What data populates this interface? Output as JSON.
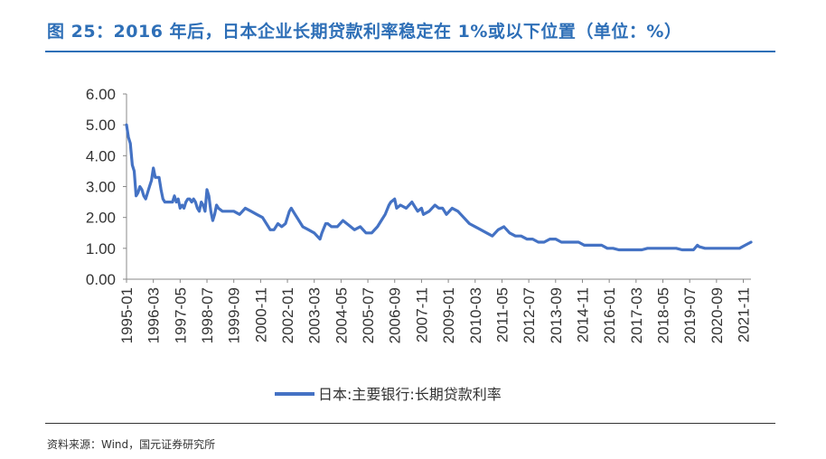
{
  "title": "图 25：2016 年后，日本企业长期贷款利率稳定在 1%或以下位置（单位：%）",
  "source": "资料来源：Wind，国元证券研究所",
  "colors": {
    "accent": "#2E6FB7",
    "series": "#4472C4"
  },
  "chart_data": {
    "type": "line",
    "title": "",
    "xlabel": "",
    "ylabel": "",
    "ylim": [
      0,
      6
    ],
    "y_ticks": [
      "0.00",
      "1.00",
      "2.00",
      "3.00",
      "4.00",
      "5.00",
      "6.00"
    ],
    "x_ticks": [
      "1995-01",
      "1996-03",
      "1997-05",
      "1998-07",
      "1999-09",
      "2000-11",
      "2002-01",
      "2003-03",
      "2004-05",
      "2005-07",
      "2006-09",
      "2007-11",
      "2009-01",
      "2010-03",
      "2011-05",
      "2012-07",
      "2013-09",
      "2014-11",
      "2016-01",
      "2017-03",
      "2018-05",
      "2019-07",
      "2020-09",
      "2021-11"
    ],
    "grid": false,
    "legend": "bottom",
    "series": [
      {
        "name": "日本:主要银行:长期贷款利率",
        "points": [
          [
            "1995-01",
            5.0
          ],
          [
            "1995-02",
            4.6
          ],
          [
            "1995-03",
            4.4
          ],
          [
            "1995-04",
            3.7
          ],
          [
            "1995-05",
            3.5
          ],
          [
            "1995-06",
            2.7
          ],
          [
            "1995-07",
            2.8
          ],
          [
            "1995-08",
            3.0
          ],
          [
            "1995-09",
            2.9
          ],
          [
            "1995-10",
            2.7
          ],
          [
            "1995-11",
            2.6
          ],
          [
            "1995-12",
            2.8
          ],
          [
            "1996-01",
            3.0
          ],
          [
            "1996-02",
            3.2
          ],
          [
            "1996-03",
            3.6
          ],
          [
            "1996-04",
            3.3
          ],
          [
            "1996-05",
            3.3
          ],
          [
            "1996-06",
            3.3
          ],
          [
            "1996-07",
            2.9
          ],
          [
            "1996-08",
            2.6
          ],
          [
            "1996-09",
            2.5
          ],
          [
            "1996-10",
            2.5
          ],
          [
            "1996-11",
            2.5
          ],
          [
            "1996-12",
            2.5
          ],
          [
            "1997-01",
            2.5
          ],
          [
            "1997-02",
            2.7
          ],
          [
            "1997-03",
            2.5
          ],
          [
            "1997-04",
            2.6
          ],
          [
            "1997-05",
            2.3
          ],
          [
            "1997-06",
            2.4
          ],
          [
            "1997-07",
            2.3
          ],
          [
            "1997-08",
            2.5
          ],
          [
            "1997-09",
            2.6
          ],
          [
            "1997-10",
            2.6
          ],
          [
            "1997-11",
            2.5
          ],
          [
            "1997-12",
            2.6
          ],
          [
            "1998-01",
            2.5
          ],
          [
            "1998-02",
            2.3
          ],
          [
            "1998-03",
            2.2
          ],
          [
            "1998-04",
            2.5
          ],
          [
            "1998-05",
            2.4
          ],
          [
            "1998-06",
            2.2
          ],
          [
            "1998-07",
            2.9
          ],
          [
            "1998-08",
            2.7
          ],
          [
            "1998-09",
            2.2
          ],
          [
            "1998-10",
            1.9
          ],
          [
            "1998-11",
            2.1
          ],
          [
            "1998-12",
            2.4
          ],
          [
            "1999-01",
            2.3
          ],
          [
            "1999-03",
            2.2
          ],
          [
            "1999-06",
            2.2
          ],
          [
            "1999-09",
            2.2
          ],
          [
            "1999-12",
            2.1
          ],
          [
            "2000-03",
            2.3
          ],
          [
            "2000-06",
            2.2
          ],
          [
            "2000-09",
            2.1
          ],
          [
            "2000-12",
            2.0
          ],
          [
            "2001-03",
            1.7
          ],
          [
            "2001-04",
            1.6
          ],
          [
            "2001-06",
            1.6
          ],
          [
            "2001-08",
            1.8
          ],
          [
            "2001-10",
            1.7
          ],
          [
            "2001-12",
            1.8
          ],
          [
            "2002-02",
            2.2
          ],
          [
            "2002-03",
            2.3
          ],
          [
            "2002-05",
            2.1
          ],
          [
            "2002-07",
            1.9
          ],
          [
            "2002-09",
            1.7
          ],
          [
            "2002-12",
            1.6
          ],
          [
            "2003-03",
            1.5
          ],
          [
            "2003-06",
            1.3
          ],
          [
            "2003-07",
            1.5
          ],
          [
            "2003-09",
            1.8
          ],
          [
            "2003-10",
            1.8
          ],
          [
            "2003-12",
            1.7
          ],
          [
            "2004-03",
            1.7
          ],
          [
            "2004-06",
            1.9
          ],
          [
            "2004-08",
            1.8
          ],
          [
            "2004-10",
            1.7
          ],
          [
            "2004-12",
            1.6
          ],
          [
            "2005-03",
            1.7
          ],
          [
            "2005-06",
            1.5
          ],
          [
            "2005-09",
            1.5
          ],
          [
            "2005-12",
            1.7
          ],
          [
            "2006-02",
            1.9
          ],
          [
            "2006-04",
            2.1
          ],
          [
            "2006-06",
            2.4
          ],
          [
            "2006-07",
            2.5
          ],
          [
            "2006-09",
            2.6
          ],
          [
            "2006-10",
            2.3
          ],
          [
            "2006-12",
            2.4
          ],
          [
            "2007-03",
            2.3
          ],
          [
            "2007-06",
            2.5
          ],
          [
            "2007-07",
            2.4
          ],
          [
            "2007-09",
            2.2
          ],
          [
            "2007-11",
            2.3
          ],
          [
            "2007-12",
            2.1
          ],
          [
            "2008-03",
            2.2
          ],
          [
            "2008-06",
            2.4
          ],
          [
            "2008-08",
            2.3
          ],
          [
            "2008-10",
            2.3
          ],
          [
            "2008-12",
            2.1
          ],
          [
            "2009-03",
            2.3
          ],
          [
            "2009-06",
            2.2
          ],
          [
            "2009-09",
            2.0
          ],
          [
            "2009-12",
            1.8
          ],
          [
            "2010-03",
            1.7
          ],
          [
            "2010-06",
            1.6
          ],
          [
            "2010-09",
            1.5
          ],
          [
            "2010-12",
            1.4
          ],
          [
            "2011-03",
            1.6
          ],
          [
            "2011-06",
            1.7
          ],
          [
            "2011-09",
            1.5
          ],
          [
            "2011-12",
            1.4
          ],
          [
            "2012-03",
            1.4
          ],
          [
            "2012-06",
            1.3
          ],
          [
            "2012-09",
            1.3
          ],
          [
            "2012-12",
            1.2
          ],
          [
            "2013-03",
            1.2
          ],
          [
            "2013-06",
            1.3
          ],
          [
            "2013-09",
            1.3
          ],
          [
            "2013-12",
            1.2
          ],
          [
            "2014-03",
            1.2
          ],
          [
            "2014-06",
            1.2
          ],
          [
            "2014-09",
            1.2
          ],
          [
            "2014-12",
            1.1
          ],
          [
            "2015-03",
            1.1
          ],
          [
            "2015-06",
            1.1
          ],
          [
            "2015-09",
            1.1
          ],
          [
            "2015-12",
            1.0
          ],
          [
            "2016-03",
            1.0
          ],
          [
            "2016-06",
            0.95
          ],
          [
            "2016-09",
            0.95
          ],
          [
            "2016-12",
            0.95
          ],
          [
            "2017-03",
            0.95
          ],
          [
            "2017-06",
            0.95
          ],
          [
            "2017-09",
            1.0
          ],
          [
            "2017-12",
            1.0
          ],
          [
            "2018-03",
            1.0
          ],
          [
            "2018-06",
            1.0
          ],
          [
            "2018-09",
            1.0
          ],
          [
            "2018-12",
            1.0
          ],
          [
            "2019-03",
            0.95
          ],
          [
            "2019-06",
            0.95
          ],
          [
            "2019-09",
            0.95
          ],
          [
            "2019-11",
            1.1
          ],
          [
            "2019-12",
            1.05
          ],
          [
            "2020-03",
            1.0
          ],
          [
            "2020-06",
            1.0
          ],
          [
            "2020-09",
            1.0
          ],
          [
            "2020-12",
            1.0
          ],
          [
            "2021-03",
            1.0
          ],
          [
            "2021-06",
            1.0
          ],
          [
            "2021-09",
            1.0
          ],
          [
            "2021-12",
            1.1
          ],
          [
            "2022-03",
            1.2
          ]
        ]
      }
    ]
  }
}
